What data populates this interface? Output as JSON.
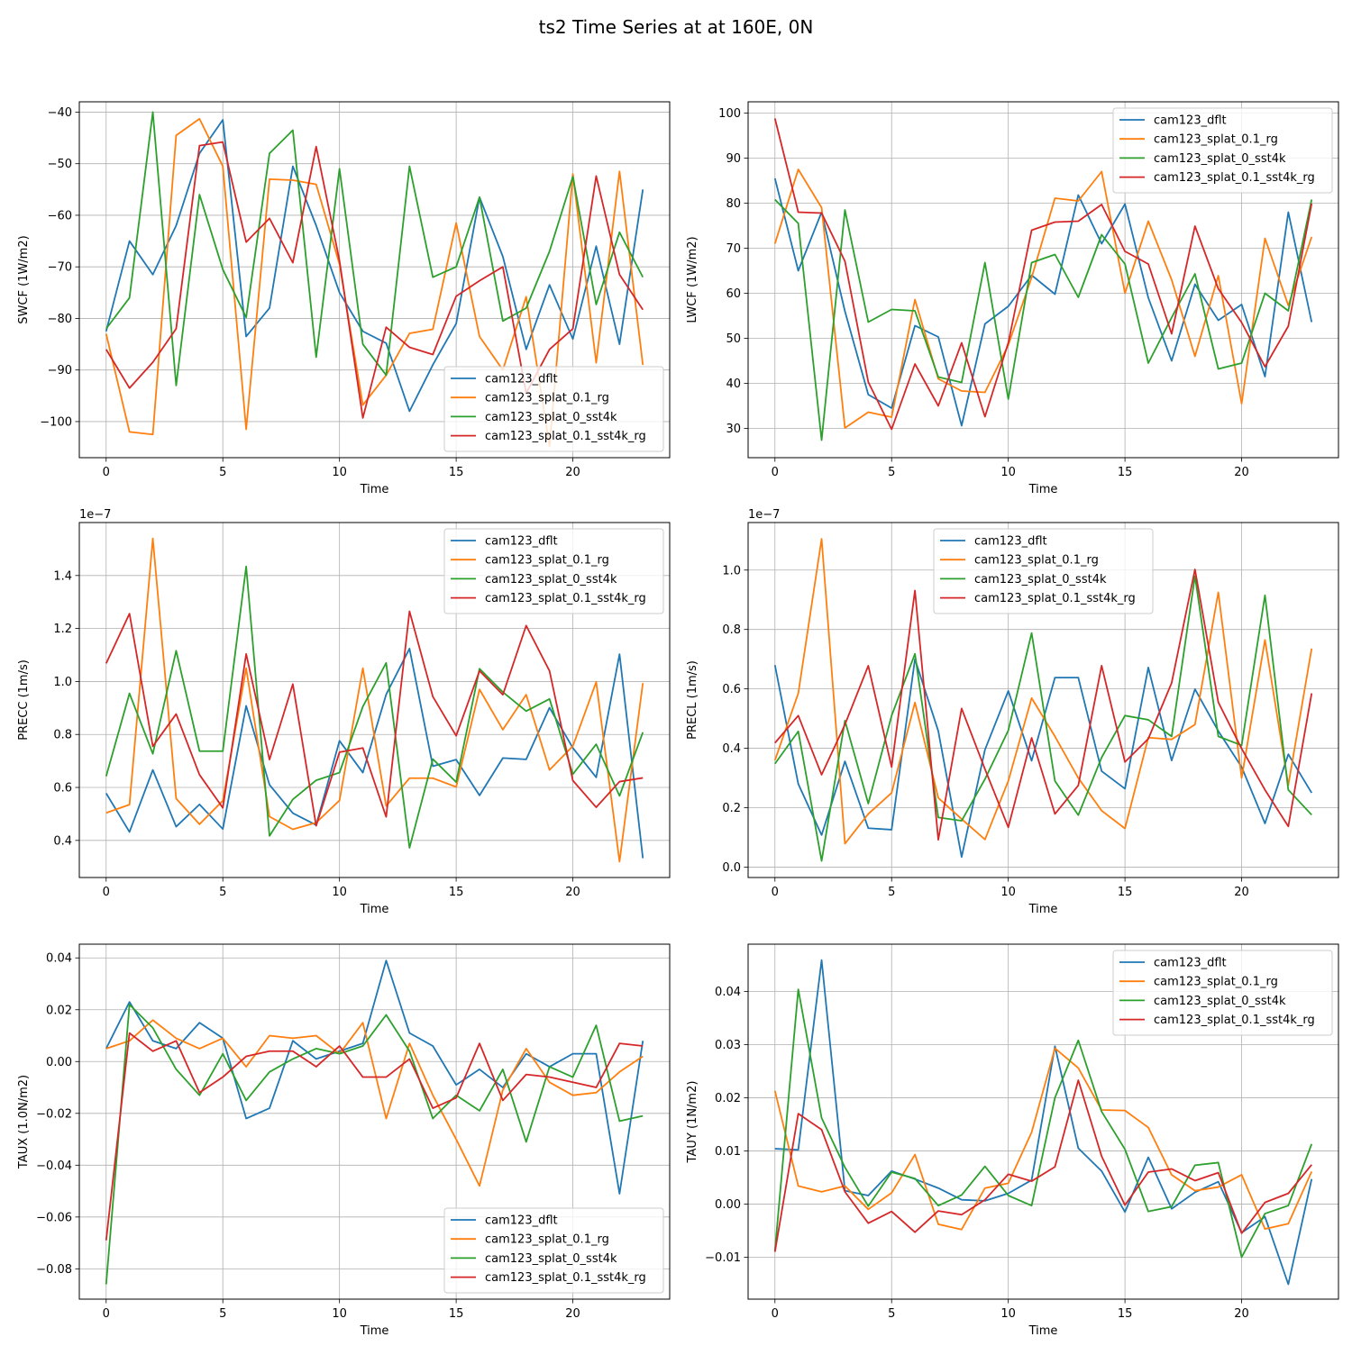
{
  "figure": {
    "suptitle": "ts2 Time Series at at 160E, 0N"
  },
  "colors": {
    "cam123_dflt": "#1f77b4",
    "cam123_splat_0.1_rg": "#ff7f0e",
    "cam123_splat_0_sst4k": "#2ca02c",
    "cam123_splat_0.1_sst4k_rg": "#d62728",
    "grid": "#b0b0b0"
  },
  "chart_data": [
    {
      "type": "line",
      "ylabel": "SWCF (1W/m2)",
      "xlabel": "Time",
      "offset_text": "",
      "legend_loc": "lower-right",
      "x": [
        0,
        1,
        2,
        3,
        4,
        5,
        6,
        7,
        8,
        9,
        10,
        11,
        12,
        13,
        14,
        15,
        16,
        17,
        18,
        19,
        20,
        21,
        22,
        23
      ],
      "xlim": [
        -1.15,
        24.15
      ],
      "xticks": [
        0,
        5,
        10,
        15,
        20
      ],
      "ylim": [
        -107,
        -38
      ],
      "yticks": [
        -100,
        -90,
        -80,
        -70,
        -60,
        -50,
        -40
      ],
      "ytick_labels": [
        "−100",
        "−90",
        "−80",
        "−70",
        "−60",
        "−50",
        "−40"
      ],
      "series": [
        {
          "name": "cam123_dflt",
          "values": [
            -82.5,
            -65,
            -71.5,
            -62,
            -48,
            -41.5,
            -83.5,
            -78,
            -50.5,
            -62,
            -75,
            -82.5,
            -84.8,
            -98,
            -89,
            -81,
            -56.5,
            -68,
            -86,
            -73.5,
            -84,
            -66,
            -85,
            -55
          ]
        },
        {
          "name": "cam123_splat_0.1_rg",
          "values": [
            -83,
            -102,
            -102.5,
            -44.5,
            -41.3,
            -50.5,
            -101.5,
            -53,
            -53.2,
            -54,
            -69.5,
            -96.8,
            -91,
            -82.9,
            -82.1,
            -61.5,
            -83.5,
            -90,
            -75.8,
            -104.8,
            -52,
            -88.6,
            -51.5,
            -89
          ]
        },
        {
          "name": "cam123_splat_0_sst4k",
          "values": [
            -82,
            -76,
            -40,
            -93,
            -56,
            -70.5,
            -79.8,
            -48,
            -43.5,
            -87.5,
            -51,
            -85,
            -91,
            -50.5,
            -72,
            -70,
            -56.5,
            -80.5,
            -78,
            -67,
            -52.5,
            -77.3,
            -63.3,
            -72
          ]
        },
        {
          "name": "cam123_splat_0.1_sst4k_rg",
          "values": [
            -86,
            -93.5,
            -88.5,
            -82,
            -46.5,
            -45.8,
            -65.2,
            -60.6,
            -69.2,
            -46.7,
            -68.8,
            -99.3,
            -81.7,
            -85.6,
            -87,
            -75.7,
            -72.7,
            -70,
            -94.5,
            -86,
            -82,
            -52.4,
            -71.5,
            -78.3
          ]
        }
      ]
    },
    {
      "type": "line",
      "ylabel": "LWCF (1W/m2)",
      "xlabel": "Time",
      "offset_text": "",
      "legend_loc": "upper-right",
      "x": [
        0,
        1,
        2,
        3,
        4,
        5,
        6,
        7,
        8,
        9,
        10,
        11,
        12,
        13,
        14,
        15,
        16,
        17,
        18,
        19,
        20,
        21,
        22,
        23
      ],
      "xlim": [
        -1.15,
        24.15
      ],
      "xticks": [
        0,
        5,
        10,
        15,
        20
      ],
      "ylim": [
        23.5,
        102.5
      ],
      "yticks": [
        30,
        40,
        50,
        60,
        70,
        80,
        90,
        100
      ],
      "ytick_labels": [
        "30",
        "40",
        "50",
        "60",
        "70",
        "80",
        "90",
        "100"
      ],
      "series": [
        {
          "name": "cam123_dflt",
          "values": [
            85.5,
            65,
            78,
            56,
            37.5,
            34.5,
            52.8,
            50.3,
            30.6,
            53.2,
            57.1,
            64,
            59.8,
            81.8,
            71,
            79.8,
            59,
            45,
            62,
            54,
            57.5,
            41.5,
            78,
            53.6
          ]
        },
        {
          "name": "cam123_splat_0.1_rg",
          "values": [
            71,
            87.5,
            79,
            30.1,
            33.6,
            32.5,
            58.6,
            41,
            38.3,
            38,
            48.5,
            63.5,
            81.1,
            80.5,
            87,
            60,
            76,
            63,
            46,
            63.9,
            35.5,
            72.2,
            57.3,
            72.5
          ]
        },
        {
          "name": "cam123_splat_0_sst4k",
          "values": [
            80.8,
            75.5,
            27.4,
            78.5,
            53.6,
            56.4,
            56.1,
            41.4,
            40.2,
            66.8,
            36.5,
            66.8,
            68.6,
            59.1,
            73,
            66.5,
            44.5,
            54.6,
            64.3,
            43.2,
            44.5,
            60,
            56.1,
            80.8
          ]
        },
        {
          "name": "cam123_splat_0.1_sst4k_rg",
          "values": [
            98.8,
            78,
            77.8,
            67.1,
            40.3,
            29.8,
            44.3,
            35,
            49,
            32.6,
            49,
            74,
            75.8,
            76,
            79.7,
            69.3,
            66.5,
            51,
            74.9,
            61,
            53.5,
            43.7,
            52.7,
            79.9
          ]
        }
      ]
    },
    {
      "type": "line",
      "ylabel": "PRECC (1m/s)",
      "xlabel": "Time",
      "offset_text": "1e−7",
      "legend_loc": "upper-right",
      "x": [
        0,
        1,
        2,
        3,
        4,
        5,
        6,
        7,
        8,
        9,
        10,
        11,
        12,
        13,
        14,
        15,
        16,
        17,
        18,
        19,
        20,
        21,
        22,
        23
      ],
      "xlim": [
        -1.15,
        24.15
      ],
      "xticks": [
        0,
        5,
        10,
        15,
        20
      ],
      "ylim": [
        0.26,
        1.6
      ],
      "yticks": [
        0.4,
        0.6,
        0.8,
        1.0,
        1.2,
        1.4
      ],
      "ytick_labels": [
        "0.4",
        "0.6",
        "0.8",
        "1.0",
        "1.2",
        "1.4"
      ],
      "series": [
        {
          "name": "cam123_dflt",
          "values": [
            0.578,
            0.432,
            0.666,
            0.452,
            0.536,
            0.443,
            0.908,
            0.61,
            0.503,
            0.458,
            0.776,
            0.656,
            0.951,
            1.124,
            0.68,
            0.705,
            0.57,
            0.711,
            0.706,
            0.901,
            0.749,
            0.638,
            1.103,
            0.333
          ]
        },
        {
          "name": "cam123_splat_0.1_rg",
          "values": [
            0.504,
            0.535,
            1.54,
            0.558,
            0.461,
            0.55,
            1.05,
            0.49,
            0.442,
            0.467,
            0.551,
            1.05,
            0.53,
            0.635,
            0.635,
            0.602,
            0.97,
            0.818,
            0.95,
            0.666,
            0.756,
            0.998,
            0.32,
            0.994
          ]
        },
        {
          "name": "cam123_splat_0_sst4k",
          "values": [
            0.642,
            0.955,
            0.727,
            1.116,
            0.737,
            0.737,
            1.434,
            0.417,
            0.555,
            0.627,
            0.656,
            0.905,
            1.07,
            0.372,
            0.707,
            0.62,
            1.048,
            0.96,
            0.888,
            0.934,
            0.65,
            0.763,
            0.568,
            0.808
          ]
        },
        {
          "name": "cam123_splat_0.1_sst4k_rg",
          "values": [
            1.068,
            1.256,
            0.755,
            0.877,
            0.648,
            0.523,
            1.104,
            0.705,
            0.99,
            0.455,
            0.733,
            0.749,
            0.489,
            1.265,
            0.943,
            0.795,
            1.04,
            0.95,
            1.211,
            1.04,
            0.626,
            0.525,
            0.622,
            0.636
          ]
        }
      ]
    },
    {
      "type": "line",
      "ylabel": "PRECL (1m/s)",
      "xlabel": "Time",
      "offset_text": "1e−7",
      "legend_loc": "upper-center",
      "x": [
        0,
        1,
        2,
        3,
        4,
        5,
        6,
        7,
        8,
        9,
        10,
        11,
        12,
        13,
        14,
        15,
        16,
        17,
        18,
        19,
        20,
        21,
        22,
        23
      ],
      "xlim": [
        -1.15,
        24.15
      ],
      "xticks": [
        0,
        5,
        10,
        15,
        20
      ],
      "ylim": [
        -0.035,
        1.16
      ],
      "yticks": [
        0.0,
        0.2,
        0.4,
        0.6,
        0.8,
        1.0
      ],
      "ytick_labels": [
        "0.0",
        "0.2",
        "0.4",
        "0.6",
        "0.8",
        "1.0"
      ],
      "series": [
        {
          "name": "cam123_dflt",
          "values": [
            0.68,
            0.28,
            0.108,
            0.356,
            0.131,
            0.126,
            0.7,
            0.458,
            0.034,
            0.395,
            0.593,
            0.358,
            0.638,
            0.638,
            0.323,
            0.264,
            0.672,
            0.359,
            0.599,
            0.458,
            0.337,
            0.147,
            0.38,
            0.25
          ]
        },
        {
          "name": "cam123_splat_0.1_rg",
          "values": [
            0.36,
            0.585,
            1.105,
            0.079,
            0.179,
            0.25,
            0.554,
            0.233,
            0.162,
            0.093,
            0.29,
            0.569,
            0.44,
            0.3,
            0.19,
            0.13,
            0.436,
            0.43,
            0.48,
            0.925,
            0.3,
            0.765,
            0.276,
            0.736
          ]
        },
        {
          "name": "cam123_splat_0_sst4k",
          "values": [
            0.348,
            0.457,
            0.021,
            0.493,
            0.214,
            0.51,
            0.718,
            0.167,
            0.156,
            0.296,
            0.46,
            0.788,
            0.29,
            0.175,
            0.369,
            0.51,
            0.496,
            0.44,
            0.98,
            0.44,
            0.41,
            0.915,
            0.26,
            0.176
          ]
        },
        {
          "name": "cam123_splat_0.1_sst4k_rg",
          "values": [
            0.418,
            0.51,
            0.311,
            0.48,
            0.678,
            0.337,
            0.931,
            0.092,
            0.534,
            0.33,
            0.134,
            0.435,
            0.179,
            0.275,
            0.678,
            0.354,
            0.432,
            0.62,
            1.002,
            0.555,
            0.399,
            0.26,
            0.137,
            0.585
          ]
        }
      ]
    },
    {
      "type": "line",
      "ylabel": "TAUX (1.0N/m2)",
      "xlabel": "Time",
      "offset_text": "",
      "legend_loc": "lower-right",
      "x": [
        0,
        1,
        2,
        3,
        4,
        5,
        6,
        7,
        8,
        9,
        10,
        11,
        12,
        13,
        14,
        15,
        16,
        17,
        18,
        19,
        20,
        21,
        22,
        23
      ],
      "xlim": [
        -1.15,
        24.15
      ],
      "xticks": [
        0,
        5,
        10,
        15,
        20
      ],
      "ylim": [
        -0.0917,
        0.0453
      ],
      "yticks": [
        -0.08,
        -0.06,
        -0.04,
        -0.02,
        0.0,
        0.02,
        0.04
      ],
      "ytick_labels": [
        "−0.08",
        "−0.06",
        "−0.04",
        "−0.02",
        "0.00",
        "0.02",
        "0.04"
      ],
      "series": [
        {
          "name": "cam123_dflt",
          "values": [
            0.005,
            0.023,
            0.008,
            0.005,
            0.015,
            0.009,
            -0.022,
            -0.018,
            0.008,
            0.001,
            0.004,
            0.007,
            0.039,
            0.011,
            0.006,
            -0.009,
            -0.003,
            -0.01,
            0.003,
            -0.002,
            0.003,
            0.003,
            -0.051,
            0.008
          ]
        },
        {
          "name": "cam123_splat_0.1_rg",
          "values": [
            0.005,
            0.008,
            0.016,
            0.009,
            0.005,
            0.009,
            -0.002,
            0.01,
            0.009,
            0.01,
            0.003,
            0.015,
            -0.022,
            0.007,
            -0.013,
            -0.03,
            -0.048,
            -0.011,
            0.005,
            -0.008,
            -0.013,
            -0.012,
            -0.004,
            0.002
          ]
        },
        {
          "name": "cam123_splat_0_sst4k",
          "values": [
            -0.086,
            0.022,
            0.013,
            -0.003,
            -0.013,
            0.003,
            -0.015,
            -0.004,
            0.001,
            0.005,
            0.003,
            0.006,
            0.018,
            0.004,
            -0.022,
            -0.013,
            -0.019,
            -0.003,
            -0.031,
            -0.002,
            -0.006,
            0.014,
            -0.023,
            -0.021
          ]
        },
        {
          "name": "cam123_splat_0.1_sst4k_rg",
          "values": [
            -0.069,
            0.011,
            0.004,
            0.008,
            -0.012,
            -0.006,
            0.002,
            0.004,
            0.004,
            -0.002,
            0.006,
            -0.006,
            -0.006,
            0.001,
            -0.018,
            -0.014,
            0.007,
            -0.015,
            -0.005,
            -0.006,
            -0.008,
            -0.01,
            0.007,
            0.006
          ]
        }
      ]
    },
    {
      "type": "line",
      "ylabel": "TAUY (1N/m2)",
      "xlabel": "Time",
      "offset_text": "",
      "legend_loc": "upper-right",
      "x": [
        0,
        1,
        2,
        3,
        4,
        5,
        6,
        7,
        8,
        9,
        10,
        11,
        12,
        13,
        14,
        15,
        16,
        17,
        18,
        19,
        20,
        21,
        22,
        23
      ],
      "xlim": [
        -1.15,
        24.15
      ],
      "xticks": [
        0,
        5,
        10,
        15,
        20
      ],
      "ylim": [
        -0.0179,
        0.0489
      ],
      "yticks": [
        -0.01,
        0.0,
        0.01,
        0.02,
        0.03,
        0.04
      ],
      "ytick_labels": [
        "−0.01",
        "0.00",
        "0.01",
        "0.02",
        "0.03",
        "0.04"
      ],
      "series": [
        {
          "name": "cam123_dflt",
          "values": [
            0.0104,
            0.0102,
            0.0459,
            0.0025,
            0.0016,
            0.0062,
            0.0047,
            0.003,
            0.0008,
            0.0006,
            0.002,
            0.0045,
            0.0297,
            0.0105,
            0.0062,
            -0.0015,
            0.0088,
            -0.0009,
            0.0022,
            0.0042,
            -0.0054,
            -0.0024,
            -0.0151,
            0.0047
          ]
        },
        {
          "name": "cam123_splat_0.1_rg",
          "values": [
            0.0213,
            0.0034,
            0.0023,
            0.0034,
            -0.001,
            0.0021,
            0.0093,
            -0.0038,
            -0.0048,
            0.003,
            0.0039,
            0.0135,
            0.0293,
            0.0256,
            0.0177,
            0.0176,
            0.0144,
            0.0055,
            0.0025,
            0.0032,
            0.0055,
            -0.0047,
            -0.0037,
            0.0061
          ]
        },
        {
          "name": "cam123_splat_0_sst4k",
          "values": [
            -0.0088,
            0.0404,
            0.0162,
            0.0069,
            -0.0004,
            0.006,
            0.0048,
            -0.0003,
            0.0017,
            0.0071,
            0.0016,
            -0.0003,
            0.02,
            0.0308,
            0.0174,
            0.0103,
            -0.0014,
            -0.0005,
            0.0073,
            0.0078,
            -0.01,
            -0.0018,
            -0.0003,
            0.0113
          ]
        },
        {
          "name": "cam123_splat_0.1_sst4k_rg",
          "values": [
            -0.009,
            0.017,
            0.014,
            0.0023,
            -0.0036,
            -0.0014,
            -0.0053,
            -0.0013,
            -0.002,
            0.0008,
            0.0056,
            0.0043,
            0.007,
            0.0233,
            0.009,
            -0.0002,
            0.006,
            0.0066,
            0.0044,
            0.0059,
            -0.0055,
            0.0003,
            0.002,
            0.0074
          ]
        }
      ]
    }
  ]
}
